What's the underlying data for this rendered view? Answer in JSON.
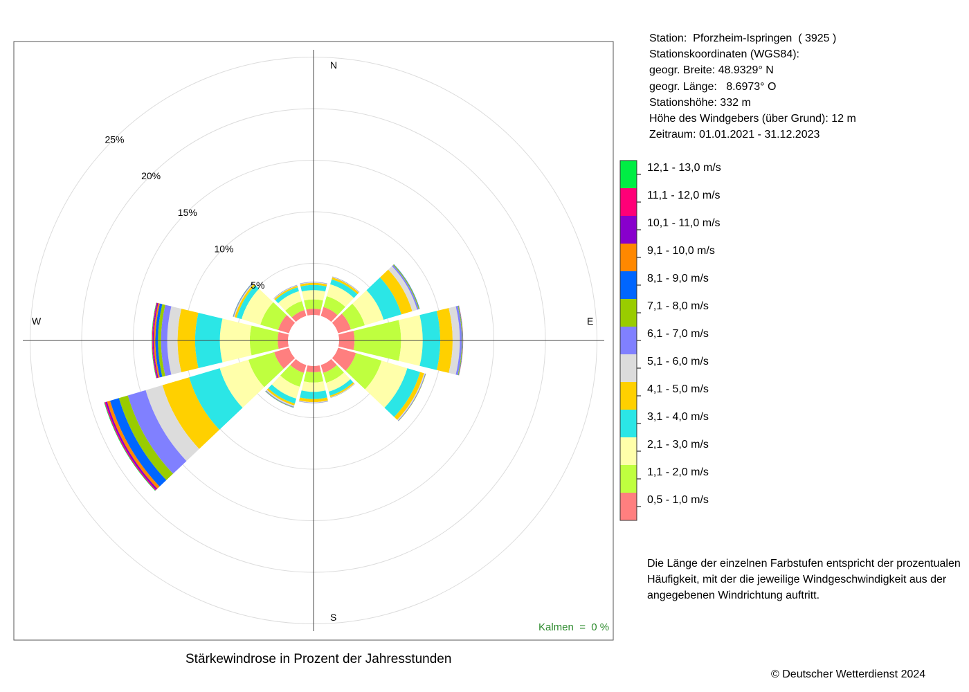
{
  "station": {
    "line1": "Station:  Pforzheim-Ispringen  ( 3925 )",
    "line2": "Stationskoordinaten (WGS84):",
    "line3": "geogr. Breite: 48.9329° N",
    "line4": "geogr. Länge:   8.6973° O",
    "line5": "Stationshöhe: 332 m",
    "line6": "Höhe des Windgebers (über Grund): 12 m",
    "line7": "Zeitraum: 01.01.2021 - 31.12.2023"
  },
  "explanation": "Die Länge der einzelnen Farbstufen entspricht der prozentualen Häufigkeit, mit der die jeweilige Windgeschwindigkeit aus der angegebenen Windrichtung auftritt.",
  "title": "Stärkewindrose in Prozent der Jahresstunden",
  "copyright": "© Deutscher Wetterdienst  2024",
  "calm": "Kalmen  =  0 %",
  "chart_data": {
    "type": "windrose",
    "title": "Stärkewindrose in Prozent der Jahresstunden",
    "radial_unit": "%",
    "radial_rings": [
      5,
      10,
      15,
      20,
      25
    ],
    "radial_tick_labels": [
      "5%",
      "10%",
      "15%",
      "20%",
      "25%"
    ],
    "compass_labels": {
      "N": "N",
      "E": "E",
      "S": "S",
      "W": "W"
    },
    "directions_deg": [
      0,
      30,
      60,
      90,
      120,
      150,
      180,
      210,
      240,
      270,
      300,
      330
    ],
    "speed_classes": [
      {
        "label": "0,5 - 1,0 m/s",
        "color": "#ff7f7f"
      },
      {
        "label": "1,1 - 2,0 m/s",
        "color": "#bfff3f"
      },
      {
        "label": "2,1 - 3,0 m/s",
        "color": "#ffffaa"
      },
      {
        "label": "3,1 - 4,0 m/s",
        "color": "#2be6e6"
      },
      {
        "label": "4,1 - 5,0 m/s",
        "color": "#ffd000"
      },
      {
        "label": "5,1 - 6,0 m/s",
        "color": "#dcdcdc"
      },
      {
        "label": "6,1 - 7,0 m/s",
        "color": "#8080ff"
      },
      {
        "label": "7,1 - 8,0 m/s",
        "color": "#99cc00"
      },
      {
        "label": "8,1 - 9,0 m/s",
        "color": "#0066ff"
      },
      {
        "label": "9,1 - 10,0 m/s",
        "color": "#ff8800"
      },
      {
        "label": "10,1 - 11,0 m/s",
        "color": "#8800cc"
      },
      {
        "label": "11,1 - 12,0 m/s",
        "color": "#ff0077"
      },
      {
        "label": "12,1 - 13,0 m/s",
        "color": "#00ee44"
      }
    ],
    "series": [
      {
        "direction": 0,
        "values": [
          0.6,
          0.9,
          0.9,
          0.5,
          0.2,
          0.06,
          0.03,
          0.01,
          0,
          0,
          0,
          0,
          0
        ]
      },
      {
        "direction": 30,
        "values": [
          0.9,
          1.1,
          1.2,
          0.5,
          0.2,
          0.05,
          0.03,
          0.01,
          0,
          0,
          0,
          0,
          0
        ]
      },
      {
        "direction": 60,
        "values": [
          1.3,
          1.4,
          1.9,
          1.8,
          1.1,
          0.5,
          0.15,
          0.08,
          0.03,
          0,
          0,
          0,
          0
        ]
      },
      {
        "direction": 90,
        "values": [
          1.5,
          4.5,
          2.1,
          1.7,
          1.2,
          0.7,
          0.2,
          0.06,
          0.03,
          0.02,
          0.01,
          0,
          0
        ]
      },
      {
        "direction": 120,
        "values": [
          1.8,
          2.6,
          2.6,
          1.3,
          0.4,
          0.1,
          0.06,
          0.03,
          0,
          0,
          0,
          0,
          0
        ]
      },
      {
        "direction": 150,
        "values": [
          0.8,
          1.0,
          0.9,
          0.4,
          0.15,
          0.05,
          0.02,
          0.01,
          0,
          0,
          0,
          0,
          0
        ]
      },
      {
        "direction": 180,
        "values": [
          0.6,
          1.0,
          0.9,
          0.7,
          0.3,
          0.06,
          0.03,
          0.01,
          0,
          0,
          0,
          0,
          0
        ]
      },
      {
        "direction": 210,
        "values": [
          0.8,
          1.4,
          1.2,
          0.5,
          0.2,
          0.1,
          0.06,
          0.04,
          0.02,
          0,
          0,
          0,
          0
        ]
      },
      {
        "direction": 240,
        "values": [
          1.5,
          2.6,
          2.9,
          3.1,
          2.7,
          1.7,
          1.8,
          0.9,
          0.9,
          0.3,
          0.15,
          0.1,
          0.05
        ]
      },
      {
        "direction": 270,
        "values": [
          1.0,
          2.7,
          2.9,
          2.4,
          1.7,
          1.0,
          0.6,
          0.3,
          0.25,
          0.15,
          0.1,
          0.07,
          0.04
        ]
      },
      {
        "direction": 300,
        "values": [
          1.1,
          1.8,
          1.9,
          0.5,
          0.2,
          0.08,
          0.05,
          0.03,
          0.02,
          0,
          0,
          0,
          0
        ]
      },
      {
        "direction": 330,
        "values": [
          0.6,
          0.9,
          1.0,
          0.4,
          0.15,
          0.05,
          0.03,
          0.01,
          0,
          0,
          0,
          0,
          0
        ]
      }
    ],
    "calm_percent": 0
  }
}
